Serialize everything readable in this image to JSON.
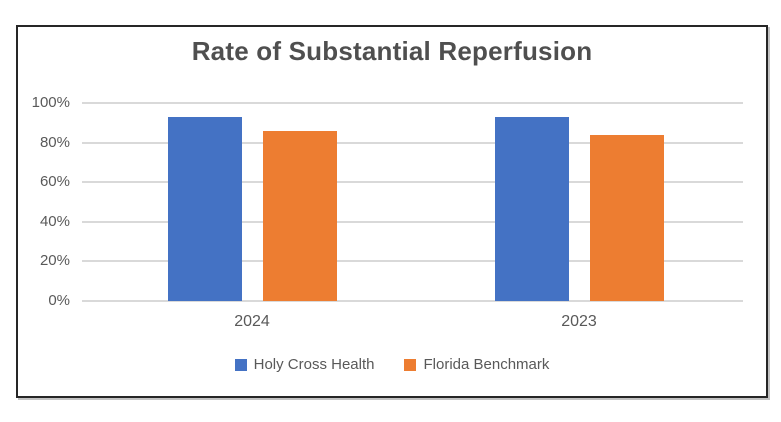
{
  "chart_data": {
    "type": "bar",
    "title": "Rate of Substantial Reperfusion",
    "categories": [
      "2024",
      "2023"
    ],
    "series": [
      {
        "name": "Holy Cross Health",
        "color": "#4472C4",
        "values": [
          93,
          93
        ]
      },
      {
        "name": "Florida Benchmark",
        "color": "#ED7D31",
        "values": [
          86,
          84
        ]
      }
    ],
    "xlabel": "",
    "ylabel": "",
    "ylim": [
      0,
      100
    ],
    "yticks": [
      0,
      20,
      40,
      60,
      80,
      100
    ],
    "ytick_suffix": "%",
    "grid": true,
    "legend_position": "bottom"
  },
  "colors": {
    "series_blue": "#4472C4",
    "series_orange": "#ED7D31",
    "text": "#595959",
    "title_text": "#4F4F4F",
    "gridline": "#D9D9D9",
    "frame_border": "#262626",
    "background": "#FFFFFF"
  }
}
